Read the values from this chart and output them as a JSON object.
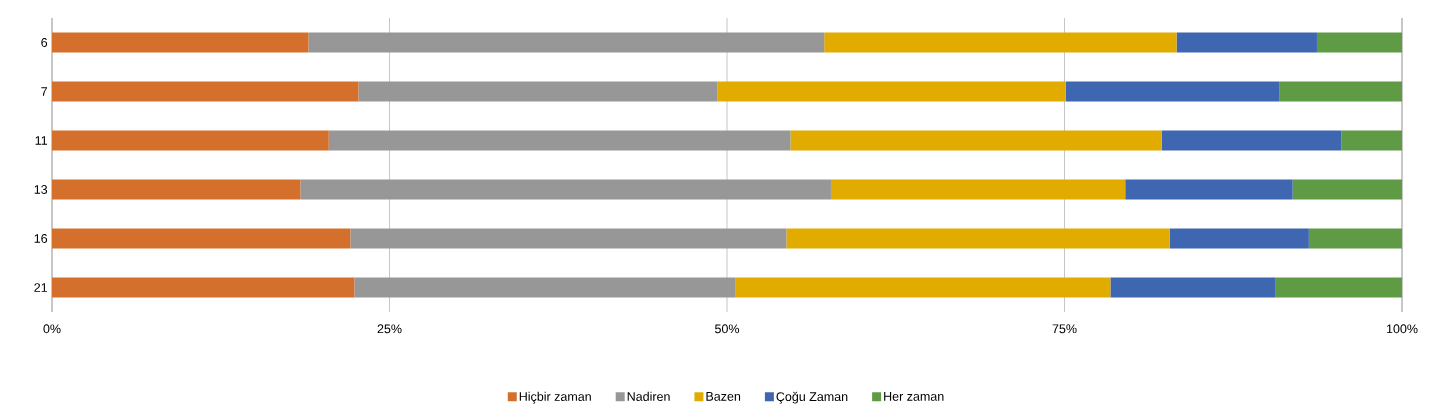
{
  "chart_data": {
    "type": "bar",
    "orientation": "horizontal",
    "stacked": true,
    "categories": [
      "6",
      "7",
      "11",
      "13",
      "16",
      "21"
    ],
    "series": [
      {
        "name": "Hiçbir zaman",
        "color": "#d5702c",
        "values": [
          19.0,
          22.7,
          20.5,
          18.4,
          22.1,
          22.4
        ]
      },
      {
        "name": "Nadiren",
        "color": "#979797",
        "values": [
          38.2,
          26.6,
          34.2,
          39.3,
          32.3,
          28.2
        ]
      },
      {
        "name": "Bazen",
        "color": "#e2ab00",
        "values": [
          26.1,
          25.8,
          27.5,
          21.8,
          28.4,
          27.8
        ]
      },
      {
        "name": "Çoğu Zaman",
        "color": "#3f66b0",
        "values": [
          10.4,
          15.8,
          13.3,
          12.4,
          10.3,
          12.2
        ]
      },
      {
        "name": "Her zaman",
        "color": "#5f9a44",
        "values": [
          6.3,
          9.1,
          4.5,
          8.1,
          6.9,
          9.4
        ]
      }
    ],
    "xlim": [
      0,
      100
    ],
    "xticks": [
      {
        "value": 0,
        "label": "0%"
      },
      {
        "value": 25,
        "label": "25%"
      },
      {
        "value": 50,
        "label": "50%"
      },
      {
        "value": 75,
        "label": "75%"
      },
      {
        "value": 100,
        "label": "100%"
      }
    ],
    "grid": "x",
    "legend": "bottom"
  }
}
